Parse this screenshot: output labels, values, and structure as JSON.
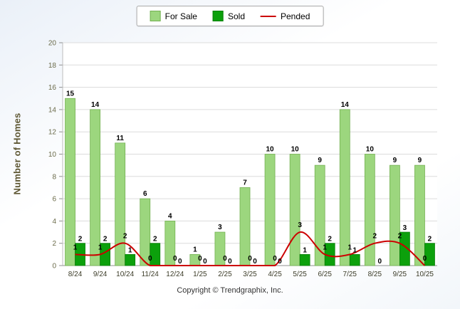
{
  "legend": {
    "for_sale": "For Sale",
    "sold": "Sold",
    "pended": "Pended"
  },
  "ylabel": "Number of Homes",
  "footer": "Copyright © Trendgraphix, Inc.",
  "colors": {
    "for_sale_fill": "#9cd67e",
    "for_sale_border": "#74b152",
    "sold_fill": "#0ca00c",
    "sold_border": "#097e09",
    "pended_line": "#cc0000",
    "grid": "#dcdcdc",
    "axis": "#909090",
    "y_tick_text": "#6b6b4a",
    "x_tick_text": "#3c3c28",
    "value_label": "#000000"
  },
  "chart_data": {
    "type": "bar",
    "title": "",
    "xlabel": "",
    "ylabel": "Number of Homes",
    "categories": [
      "8/24",
      "9/24",
      "10/24",
      "11/24",
      "12/24",
      "1/25",
      "2/25",
      "3/25",
      "4/25",
      "5/25",
      "6/25",
      "7/25",
      "8/25",
      "9/25",
      "10/25"
    ],
    "series": [
      {
        "name": "For Sale",
        "type": "bar",
        "values": [
          15,
          14,
          11,
          6,
          4,
          1,
          3,
          7,
          10,
          10,
          9,
          14,
          10,
          9,
          9
        ]
      },
      {
        "name": "Sold",
        "type": "bar",
        "values": [
          2,
          2,
          1,
          2,
          0,
          0,
          0,
          0,
          0,
          1,
          2,
          1,
          0,
          3,
          2
        ]
      },
      {
        "name": "Pended",
        "type": "line",
        "values": [
          1,
          1,
          2,
          0,
          0,
          0,
          0,
          0,
          0,
          3,
          1,
          1,
          2,
          2,
          0
        ]
      }
    ],
    "ylim": [
      0,
      20
    ],
    "ytick_step": 2,
    "grid": true,
    "legend_position": "top"
  }
}
